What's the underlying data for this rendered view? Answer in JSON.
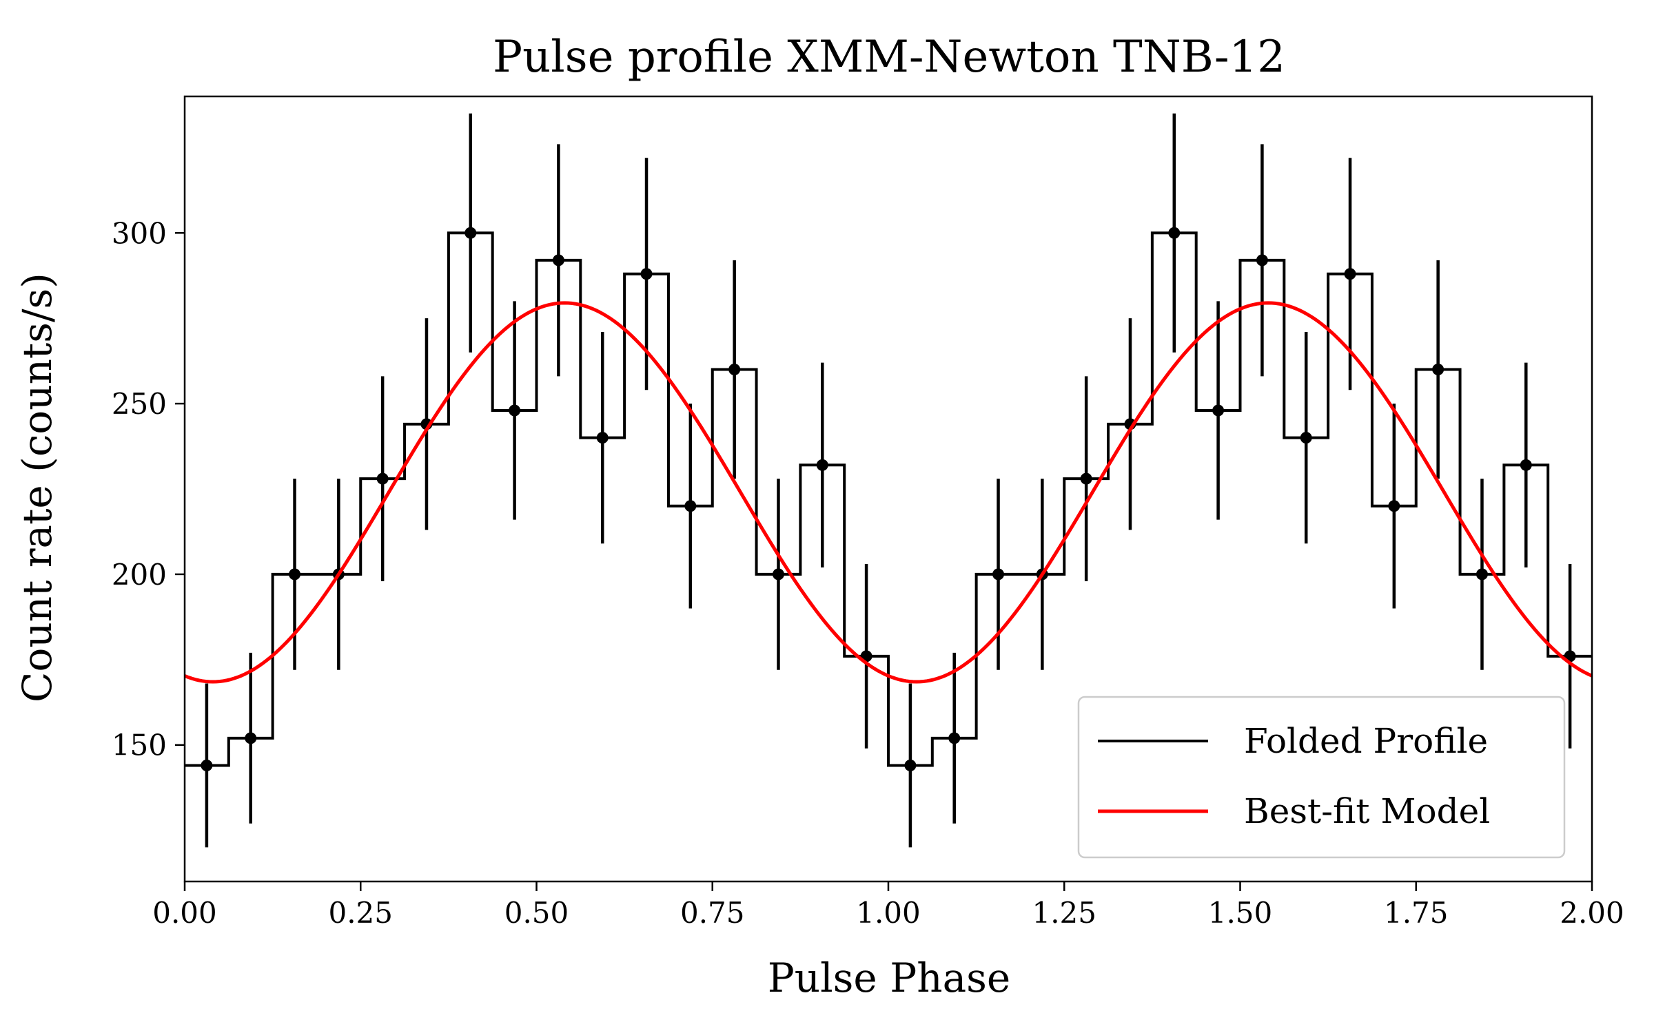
{
  "chart_data": {
    "type": "line",
    "title": "Pulse profile XMM-Newton TNB-12",
    "xlabel": "Pulse Phase",
    "ylabel": "Count rate (counts/s)",
    "xlim": [
      0.0,
      2.0
    ],
    "ylim": [
      110,
      340
    ],
    "xticks": [
      0.0,
      0.25,
      0.5,
      0.75,
      1.0,
      1.25,
      1.5,
      1.75,
      2.0
    ],
    "xtick_labels": [
      "0.00",
      "0.25",
      "0.50",
      "0.75",
      "1.00",
      "1.25",
      "1.50",
      "1.75",
      "2.00"
    ],
    "yticks": [
      150,
      200,
      250,
      300
    ],
    "ytick_labels": [
      "150",
      "200",
      "250",
      "300"
    ],
    "legend_position": "bottom-right",
    "series": [
      {
        "name": "Folded Profile",
        "style": "step-with-errorbars",
        "color": "#000000",
        "bin_width": 0.0625,
        "x": [
          0.03125,
          0.09375,
          0.15625,
          0.21875,
          0.28125,
          0.34375,
          0.40625,
          0.46875,
          0.53125,
          0.59375,
          0.65625,
          0.71875,
          0.78125,
          0.84375,
          0.90625,
          0.96875,
          1.03125,
          1.09375,
          1.15625,
          1.21875,
          1.28125,
          1.34375,
          1.40625,
          1.46875,
          1.53125,
          1.59375,
          1.65625,
          1.71875,
          1.78125,
          1.84375,
          1.90625,
          1.96875
        ],
        "y": [
          144,
          152,
          200,
          200,
          228,
          244,
          300,
          248,
          292,
          240,
          288,
          220,
          260,
          200,
          232,
          176,
          144,
          152,
          200,
          200,
          228,
          244,
          300,
          248,
          292,
          240,
          288,
          220,
          260,
          200,
          232,
          176
        ],
        "yerr": [
          24,
          25,
          28,
          28,
          30,
          31,
          35,
          32,
          34,
          31,
          34,
          30,
          32,
          28,
          30,
          27,
          24,
          25,
          28,
          28,
          30,
          31,
          35,
          32,
          34,
          31,
          34,
          30,
          32,
          28,
          30,
          27
        ]
      },
      {
        "name": "Best-fit Model",
        "style": "line",
        "color": "#ff0000",
        "model": "sinusoid",
        "mean": 224,
        "amplitude": 55.5,
        "peak_phase": 0.54
      }
    ]
  }
}
